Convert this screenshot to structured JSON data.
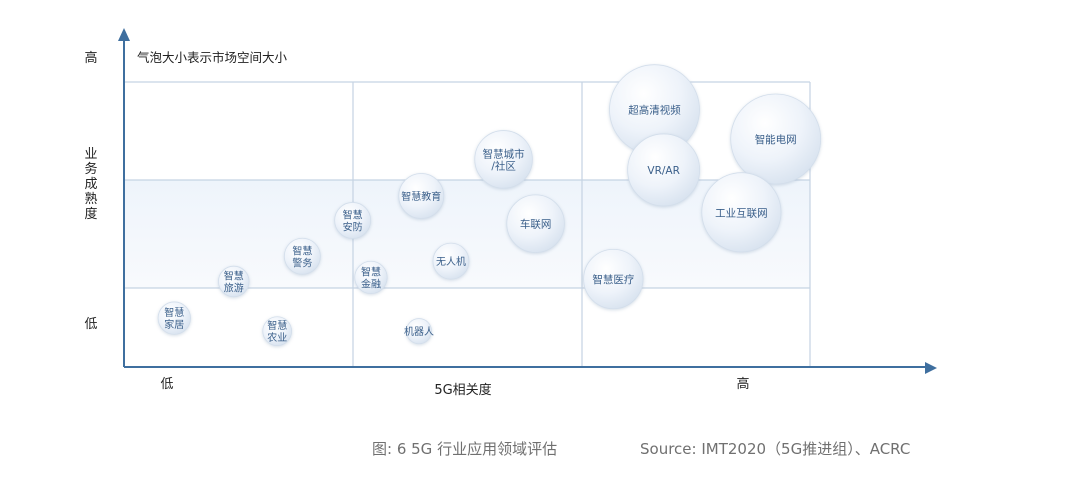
{
  "chart_data": {
    "type": "scatter",
    "title": "",
    "note": "气泡大小表示市场空间大小",
    "xlabel": "5G相关度",
    "ylabel": "业务成熟度",
    "x_low_label": "低",
    "x_high_label": "高",
    "y_low_label": "低",
    "y_high_label": "高",
    "xlim": [
      0,
      3
    ],
    "ylim": [
      0,
      3.5
    ],
    "grid": true,
    "points": [
      {
        "label": "超高清视频",
        "x": 2.32,
        "y": 3.16,
        "size": 5
      },
      {
        "label": "智能电网",
        "x": 2.85,
        "y": 2.8,
        "size": 5
      },
      {
        "label": "VR/AR",
        "x": 2.36,
        "y": 2.42,
        "size": 4
      },
      {
        "label": "工业互联网",
        "x": 2.7,
        "y": 1.9,
        "size": 4.4
      },
      {
        "label": "智慧城市/社区",
        "x": 1.66,
        "y": 2.55,
        "size": 3.2
      },
      {
        "label": "车联网",
        "x": 1.8,
        "y": 1.76,
        "size": 3.2
      },
      {
        "label": "智慧医疗",
        "x": 2.14,
        "y": 1.08,
        "size": 3.3
      },
      {
        "label": "智慧教育",
        "x": 1.3,
        "y": 2.1,
        "size": 2.5
      },
      {
        "label": "智慧安防",
        "x": 1.0,
        "y": 1.8,
        "size": 2.0
      },
      {
        "label": "无人机",
        "x": 1.43,
        "y": 1.3,
        "size": 2.0
      },
      {
        "label": "智慧警务",
        "x": 0.78,
        "y": 1.36,
        "size": 2.0
      },
      {
        "label": "智慧金融",
        "x": 1.08,
        "y": 1.1,
        "size": 1.8
      },
      {
        "label": "智慧旅游",
        "x": 0.48,
        "y": 1.05,
        "size": 1.7
      },
      {
        "label": "智慧家居",
        "x": 0.22,
        "y": 0.6,
        "size": 1.8
      },
      {
        "label": "智慧农业",
        "x": 0.67,
        "y": 0.44,
        "size": 1.6
      },
      {
        "label": "机器人",
        "x": 1.29,
        "y": 0.44,
        "size": 1.4
      }
    ]
  },
  "caption": {
    "figure": "图: 6  5G 行业应用领域评估",
    "source": "Source: IMT2020（5G推进组）、ACRC"
  },
  "colors": {
    "axis": "#3f6f9f",
    "grid": "#c5d3e3",
    "bubble_fill": "#e7eef7",
    "bubble_text": "#3a5f8a",
    "band": "#f0f5fb"
  }
}
